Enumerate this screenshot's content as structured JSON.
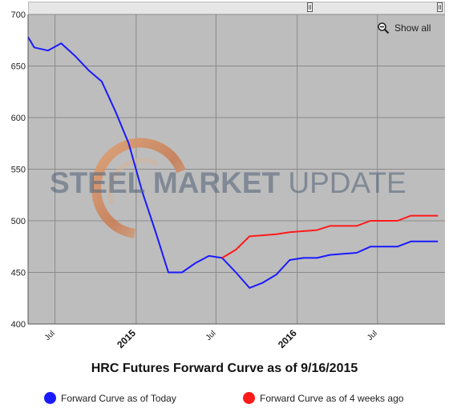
{
  "watermark": {
    "bold": "STEEL MARKET",
    "light": "UPDATE"
  },
  "toolbar": {
    "show_all_label": "Show all",
    "zoom_icon": "zoom-out-icon"
  },
  "colors": {
    "today": "#1a1aff",
    "four_weeks": "#ff1a1a",
    "plot_bg": "#bdbdbd"
  },
  "chart_data": {
    "type": "line",
    "title": "HRC Futures Forward Curve as of 9/16/2015",
    "xlabel": "",
    "ylabel": "",
    "ylim": [
      400,
      700
    ],
    "yticks": [
      400,
      450,
      500,
      550,
      600,
      650,
      700
    ],
    "xlim": [
      "2014-05-01",
      "2016-12-01"
    ],
    "xticks": [
      {
        "date": "2014-07-01",
        "label": "Jul",
        "bold": false
      },
      {
        "date": "2015-01-01",
        "label": "2015",
        "bold": true
      },
      {
        "date": "2015-07-01",
        "label": "Jul",
        "bold": false
      },
      {
        "date": "2016-01-01",
        "label": "2016",
        "bold": true
      },
      {
        "date": "2016-07-01",
        "label": "Jul",
        "bold": false
      }
    ],
    "grid": true,
    "legend_position": "bottom",
    "series": [
      {
        "name": "Forward Curve as of Today",
        "color": "#1a1aff",
        "points": [
          [
            "2014-05-01",
            678
          ],
          [
            "2014-05-15",
            668
          ],
          [
            "2014-06-15",
            665
          ],
          [
            "2014-07-15",
            672
          ],
          [
            "2014-08-15",
            660
          ],
          [
            "2014-09-15",
            646
          ],
          [
            "2014-10-15",
            635
          ],
          [
            "2014-11-15",
            606
          ],
          [
            "2014-12-15",
            575
          ],
          [
            "2015-01-15",
            528
          ],
          [
            "2015-02-15",
            488
          ],
          [
            "2015-03-15",
            450
          ],
          [
            "2015-04-15",
            450
          ],
          [
            "2015-05-15",
            459
          ],
          [
            "2015-06-15",
            466
          ],
          [
            "2015-07-15",
            464
          ],
          [
            "2015-08-15",
            450
          ],
          [
            "2015-09-15",
            435
          ],
          [
            "2015-10-15",
            440
          ],
          [
            "2015-11-15",
            448
          ],
          [
            "2015-12-15",
            462
          ],
          [
            "2016-01-15",
            464
          ],
          [
            "2016-02-15",
            464
          ],
          [
            "2016-03-15",
            467
          ],
          [
            "2016-04-15",
            468
          ],
          [
            "2016-05-15",
            469
          ],
          [
            "2016-06-15",
            475
          ],
          [
            "2016-07-15",
            475
          ],
          [
            "2016-08-15",
            475
          ],
          [
            "2016-09-15",
            480
          ],
          [
            "2016-10-15",
            480
          ],
          [
            "2016-11-15",
            480
          ]
        ]
      },
      {
        "name": "Forward Curve as of 4 weeks ago",
        "color": "#ff1a1a",
        "points": [
          [
            "2015-07-15",
            464
          ],
          [
            "2015-08-15",
            472
          ],
          [
            "2015-09-15",
            485
          ],
          [
            "2015-10-15",
            486
          ],
          [
            "2015-11-15",
            487
          ],
          [
            "2015-12-15",
            489
          ],
          [
            "2016-01-15",
            490
          ],
          [
            "2016-02-15",
            491
          ],
          [
            "2016-03-15",
            495
          ],
          [
            "2016-04-15",
            495
          ],
          [
            "2016-05-15",
            495
          ],
          [
            "2016-06-15",
            500
          ],
          [
            "2016-07-15",
            500
          ],
          [
            "2016-08-15",
            500
          ],
          [
            "2016-09-15",
            505
          ],
          [
            "2016-10-15",
            505
          ],
          [
            "2016-11-15",
            505
          ]
        ]
      }
    ]
  }
}
